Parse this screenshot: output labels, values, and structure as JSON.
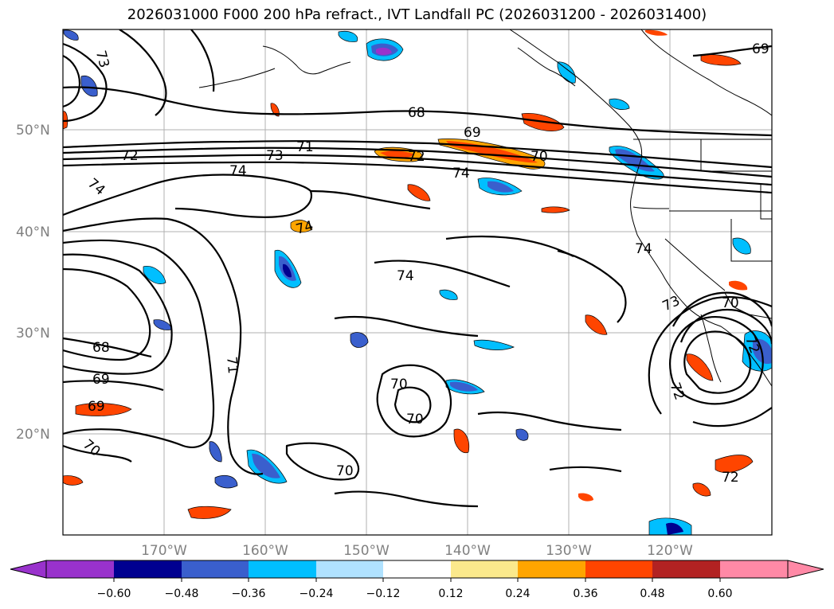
{
  "title": "2026031000 F000 200 hPa refract., IVT Landfall PC (2026031200 - 2026031400)",
  "map": {
    "lat_labels": [
      "50°N",
      "40°N",
      "30°N",
      "20°N"
    ],
    "lon_labels": [
      "170°W",
      "160°W",
      "150°W",
      "140°W",
      "130°W",
      "120°W"
    ],
    "contour_labels": [
      "73",
      "69",
      "68",
      "69",
      "71",
      "73",
      "72",
      "72",
      "70",
      "74",
      "74",
      "74",
      "74",
      "74",
      "74",
      "73",
      "70",
      "68",
      "69",
      "70",
      "70",
      "69",
      "70",
      "70",
      "71",
      "72",
      "72",
      "72"
    ]
  },
  "colorbar": {
    "ticks": [
      "−0.60",
      "−0.48",
      "−0.36",
      "−0.24",
      "−0.12",
      "0.12",
      "0.24",
      "0.36",
      "0.48",
      "0.60"
    ],
    "colors": [
      "#9932cc",
      "#000090",
      "#3a5fcd",
      "#00bfff",
      "#b0e2ff",
      "#ffffff",
      "#fbe98c",
      "#ffa500",
      "#ff4500",
      "#b22222",
      "#ff89a6"
    ]
  }
}
